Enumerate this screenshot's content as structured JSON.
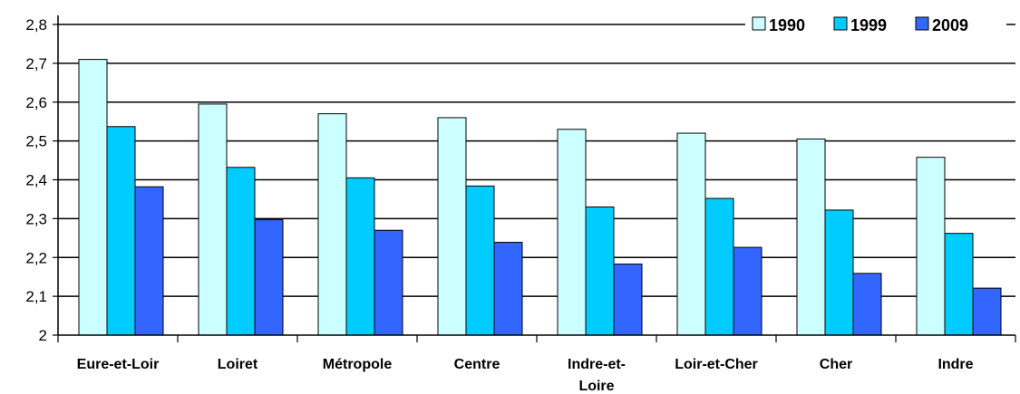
{
  "chart_data": {
    "type": "bar",
    "title": "",
    "xlabel": "",
    "ylabel": "",
    "ylim": [
      2,
      2.8
    ],
    "yticks": [
      "2",
      "2,1",
      "2,2",
      "2,3",
      "2,4",
      "2,5",
      "2,6",
      "2,7",
      "2,8"
    ],
    "grid": true,
    "legend_position": "top-right",
    "categories": [
      "Eure-et-Loir",
      "Loiret",
      "Métropole",
      "Centre",
      "Indre-et-Loire",
      "Loir-et-Cher",
      "Cher",
      "Indre"
    ],
    "category_display_lines": [
      [
        "Eure-et-Loir"
      ],
      [
        "Loiret"
      ],
      [
        "Métropole"
      ],
      [
        "Centre"
      ],
      [
        "Indre-et-",
        "Loire"
      ],
      [
        "Loir-et-Cher"
      ],
      [
        "Cher"
      ],
      [
        "Indre"
      ]
    ],
    "series": [
      {
        "name": "1990",
        "color": "#ccffff",
        "values": [
          2.71,
          2.595,
          2.57,
          2.56,
          2.53,
          2.52,
          2.505,
          2.458
        ]
      },
      {
        "name": "1999",
        "color": "#00ccff",
        "values": [
          2.537,
          2.432,
          2.405,
          2.384,
          2.33,
          2.352,
          2.322,
          2.262
        ]
      },
      {
        "name": "2009",
        "color": "#3366ff",
        "values": [
          2.382,
          2.297,
          2.27,
          2.239,
          2.183,
          2.226,
          2.159,
          2.121
        ]
      }
    ]
  }
}
